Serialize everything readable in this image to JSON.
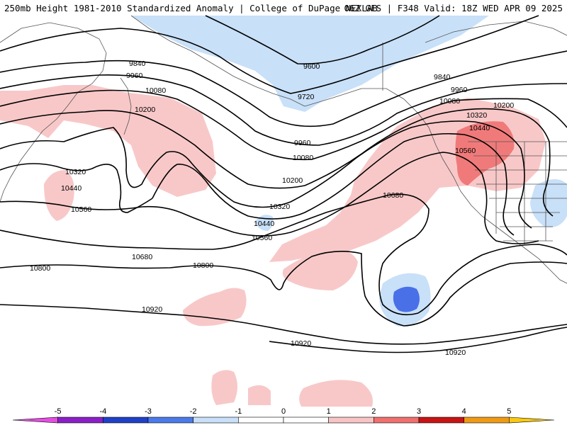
{
  "header": {
    "left_title": "250mb Height 1981-2010 Standardized Anomaly | College of DuPage NEXLAB",
    "right_title": "06Z GFS | F348 Valid: 18Z WED APR 09 2025"
  },
  "contour_labels": [
    "9600",
    "9720",
    "9840",
    "9960",
    "10080",
    "10200",
    "10320",
    "10440",
    "10560",
    "10680",
    "10800",
    "10920"
  ],
  "colorbar": {
    "ticks": [
      "-5",
      "-4",
      "-3",
      "-2",
      "-1",
      "0",
      "1",
      "2",
      "3",
      "4",
      "5"
    ],
    "colors": [
      "#e24fe0",
      "#8a1fc8",
      "#2040c8",
      "#4a7bea",
      "#c8e0f8",
      "#ffffff",
      "#ffffff",
      "#f8c4c4",
      "#f07070",
      "#c81414",
      "#f09a14",
      "#f8c814"
    ]
  },
  "map": {
    "positive_anomaly_light": "#f8c8c8",
    "positive_anomaly_medium": "#f07a7a",
    "negative_anomaly_light": "#c8e0f8",
    "negative_anomaly_medium": "#4a70e8",
    "contour_color": "#000000",
    "coastline_color": "#555555"
  }
}
